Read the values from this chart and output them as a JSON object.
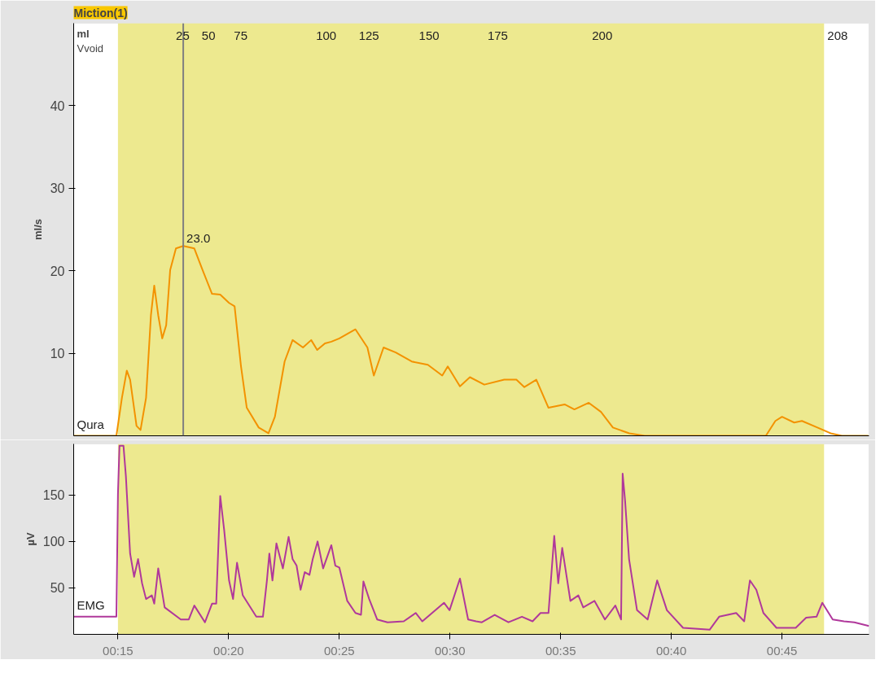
{
  "chart_data": [
    {
      "type": "line",
      "title": "Miction(1)",
      "ylabel": "ml/s",
      "xlim": [
        13,
        48.93
      ],
      "ylim": [
        0,
        50
      ],
      "yticks": [
        10,
        20,
        30,
        40
      ],
      "annotations": [
        "ml",
        "Vvoid",
        {
          "text": "25",
          "x": 17.47,
          "y": 50
        },
        {
          "text": "50",
          "x": 18.64,
          "y": 50
        },
        {
          "text": "75",
          "x": 20.09,
          "y": 50
        },
        {
          "text": "100",
          "x": 23.8,
          "y": 50
        },
        {
          "text": "125",
          "x": 25.73,
          "y": 50
        },
        {
          "text": "150",
          "x": 28.45,
          "y": 50
        },
        {
          "text": "175",
          "x": 31.55,
          "y": 50
        },
        {
          "text": "200",
          "x": 36.27,
          "y": 50
        },
        {
          "text": "208",
          "x": 46.9,
          "y": 50
        },
        {
          "text": "23.0",
          "x": 17.95,
          "y": 23.0
        }
      ],
      "bands": [
        {
          "axis": "x",
          "from": 15,
          "to": 46.9,
          "color": "#ede98f"
        }
      ],
      "ref_lines": [
        {
          "axis": "x",
          "value": 17.95,
          "color": "#808080"
        }
      ],
      "grid": false,
      "series": [
        {
          "name": "Qura",
          "color": "#f39200",
          "x": [
            13.0,
            14.93,
            15.18,
            15.4,
            15.55,
            15.84,
            16.02,
            16.27,
            16.49,
            16.64,
            16.82,
            17.0,
            17.18,
            17.36,
            17.62,
            17.95,
            18.45,
            18.82,
            19.25,
            19.62,
            20.02,
            20.27,
            20.56,
            20.82,
            21.36,
            21.8,
            22.09,
            22.53,
            22.89,
            23.36,
            23.73,
            24.0,
            24.35,
            24.64,
            25.0,
            25.73,
            26.27,
            26.56,
            27.0,
            27.55,
            28.27,
            29.0,
            29.65,
            29.9,
            30.45,
            30.9,
            31.55,
            32.45,
            33.0,
            33.36,
            33.9,
            34.45,
            35.18,
            35.62,
            36.27,
            36.82,
            37.36,
            38.1,
            38.8,
            44.27,
            44.7,
            45.0,
            45.55,
            45.9,
            46.6,
            47.2,
            47.7,
            48.9
          ],
          "values": [
            0,
            0,
            4.6,
            7.9,
            6.8,
            1.2,
            0.7,
            4.6,
            14.6,
            18.2,
            14.6,
            11.8,
            13.4,
            20.1,
            22.7,
            23.0,
            22.7,
            20.1,
            17.2,
            17.1,
            16.1,
            15.7,
            8.4,
            3.4,
            1.0,
            0.3,
            2.3,
            9.0,
            11.6,
            10.7,
            11.6,
            10.4,
            11.2,
            11.4,
            11.8,
            12.9,
            10.7,
            7.3,
            10.7,
            10.1,
            9.0,
            8.6,
            7.3,
            8.4,
            6.0,
            7.1,
            6.2,
            6.8,
            6.8,
            5.9,
            6.8,
            3.4,
            3.8,
            3.2,
            4.0,
            2.9,
            1.0,
            0.3,
            0,
            0,
            1.8,
            2.3,
            1.6,
            1.8,
            1.0,
            0.3,
            0,
            0
          ]
        }
      ]
    },
    {
      "type": "line",
      "ylabel": "µV",
      "xlim": [
        13,
        48.93
      ],
      "ylim": [
        0,
        205
      ],
      "yticks": [
        50,
        100,
        150
      ],
      "xticks": [
        {
          "value": 15,
          "label": "00:15"
        },
        {
          "value": 20,
          "label": "00:20"
        },
        {
          "value": 25,
          "label": "00:25"
        },
        {
          "value": 30,
          "label": "00:30"
        },
        {
          "value": 35,
          "label": "00:35"
        },
        {
          "value": 40,
          "label": "00:40"
        },
        {
          "value": 45,
          "label": "00:45"
        }
      ],
      "bands": [
        {
          "axis": "x",
          "from": 15,
          "to": 46.9,
          "color": "#ede98f"
        }
      ],
      "grid": false,
      "series": [
        {
          "name": "EMG",
          "color": "#b0389b",
          "x": [
            13.0,
            14.93,
            15.0,
            15.07,
            15.25,
            15.36,
            15.55,
            15.73,
            15.91,
            16.09,
            16.27,
            16.53,
            16.64,
            16.82,
            17.11,
            17.84,
            18.2,
            18.45,
            18.93,
            19.25,
            19.44,
            19.62,
            19.8,
            20.02,
            20.2,
            20.38,
            20.64,
            21.25,
            21.55,
            21.73,
            21.84,
            21.98,
            22.16,
            22.45,
            22.71,
            22.89,
            23.07,
            23.25,
            23.44,
            23.65,
            23.8,
            24.02,
            24.27,
            24.64,
            24.82,
            25.0,
            25.36,
            25.73,
            25.98,
            26.09,
            26.35,
            26.71,
            27.18,
            27.91,
            28.45,
            28.75,
            29.73,
            29.98,
            30.45,
            30.82,
            31.18,
            31.44,
            32.02,
            32.64,
            33.25,
            33.73,
            34.09,
            34.45,
            34.71,
            34.89,
            35.07,
            35.44,
            35.8,
            36.02,
            36.53,
            37.0,
            37.47,
            37.73,
            37.8,
            37.91,
            38.09,
            38.45,
            38.93,
            39.36,
            39.8,
            40.53,
            41.73,
            42.16,
            42.93,
            43.29,
            43.55,
            43.84,
            44.16,
            44.75,
            45.62,
            46.09,
            46.56,
            46.82,
            47.29,
            47.8,
            48.27,
            48.93
          ],
          "values": [
            19,
            19,
            151,
            203,
            203,
            170,
            87,
            62,
            81,
            55,
            38,
            42,
            33,
            71,
            29,
            16,
            16,
            31,
            13,
            33,
            33,
            149,
            112,
            58,
            38,
            77,
            42,
            19,
            19,
            58,
            87,
            58,
            98,
            71,
            105,
            81,
            74,
            48,
            67,
            64,
            81,
            100,
            71,
            96,
            74,
            72,
            36,
            23,
            21,
            57,
            38,
            16,
            13,
            14,
            23,
            14,
            34,
            26,
            60,
            16,
            14,
            13,
            21,
            13,
            19,
            14,
            23,
            23,
            106,
            55,
            93,
            36,
            42,
            29,
            36,
            16,
            31,
            16,
            173,
            144,
            81,
            26,
            16,
            58,
            26,
            7,
            5,
            19,
            23,
            14,
            58,
            48,
            23,
            7,
            7,
            18,
            19,
            34,
            16,
            14,
            13,
            9
          ]
        }
      ]
    }
  ]
}
